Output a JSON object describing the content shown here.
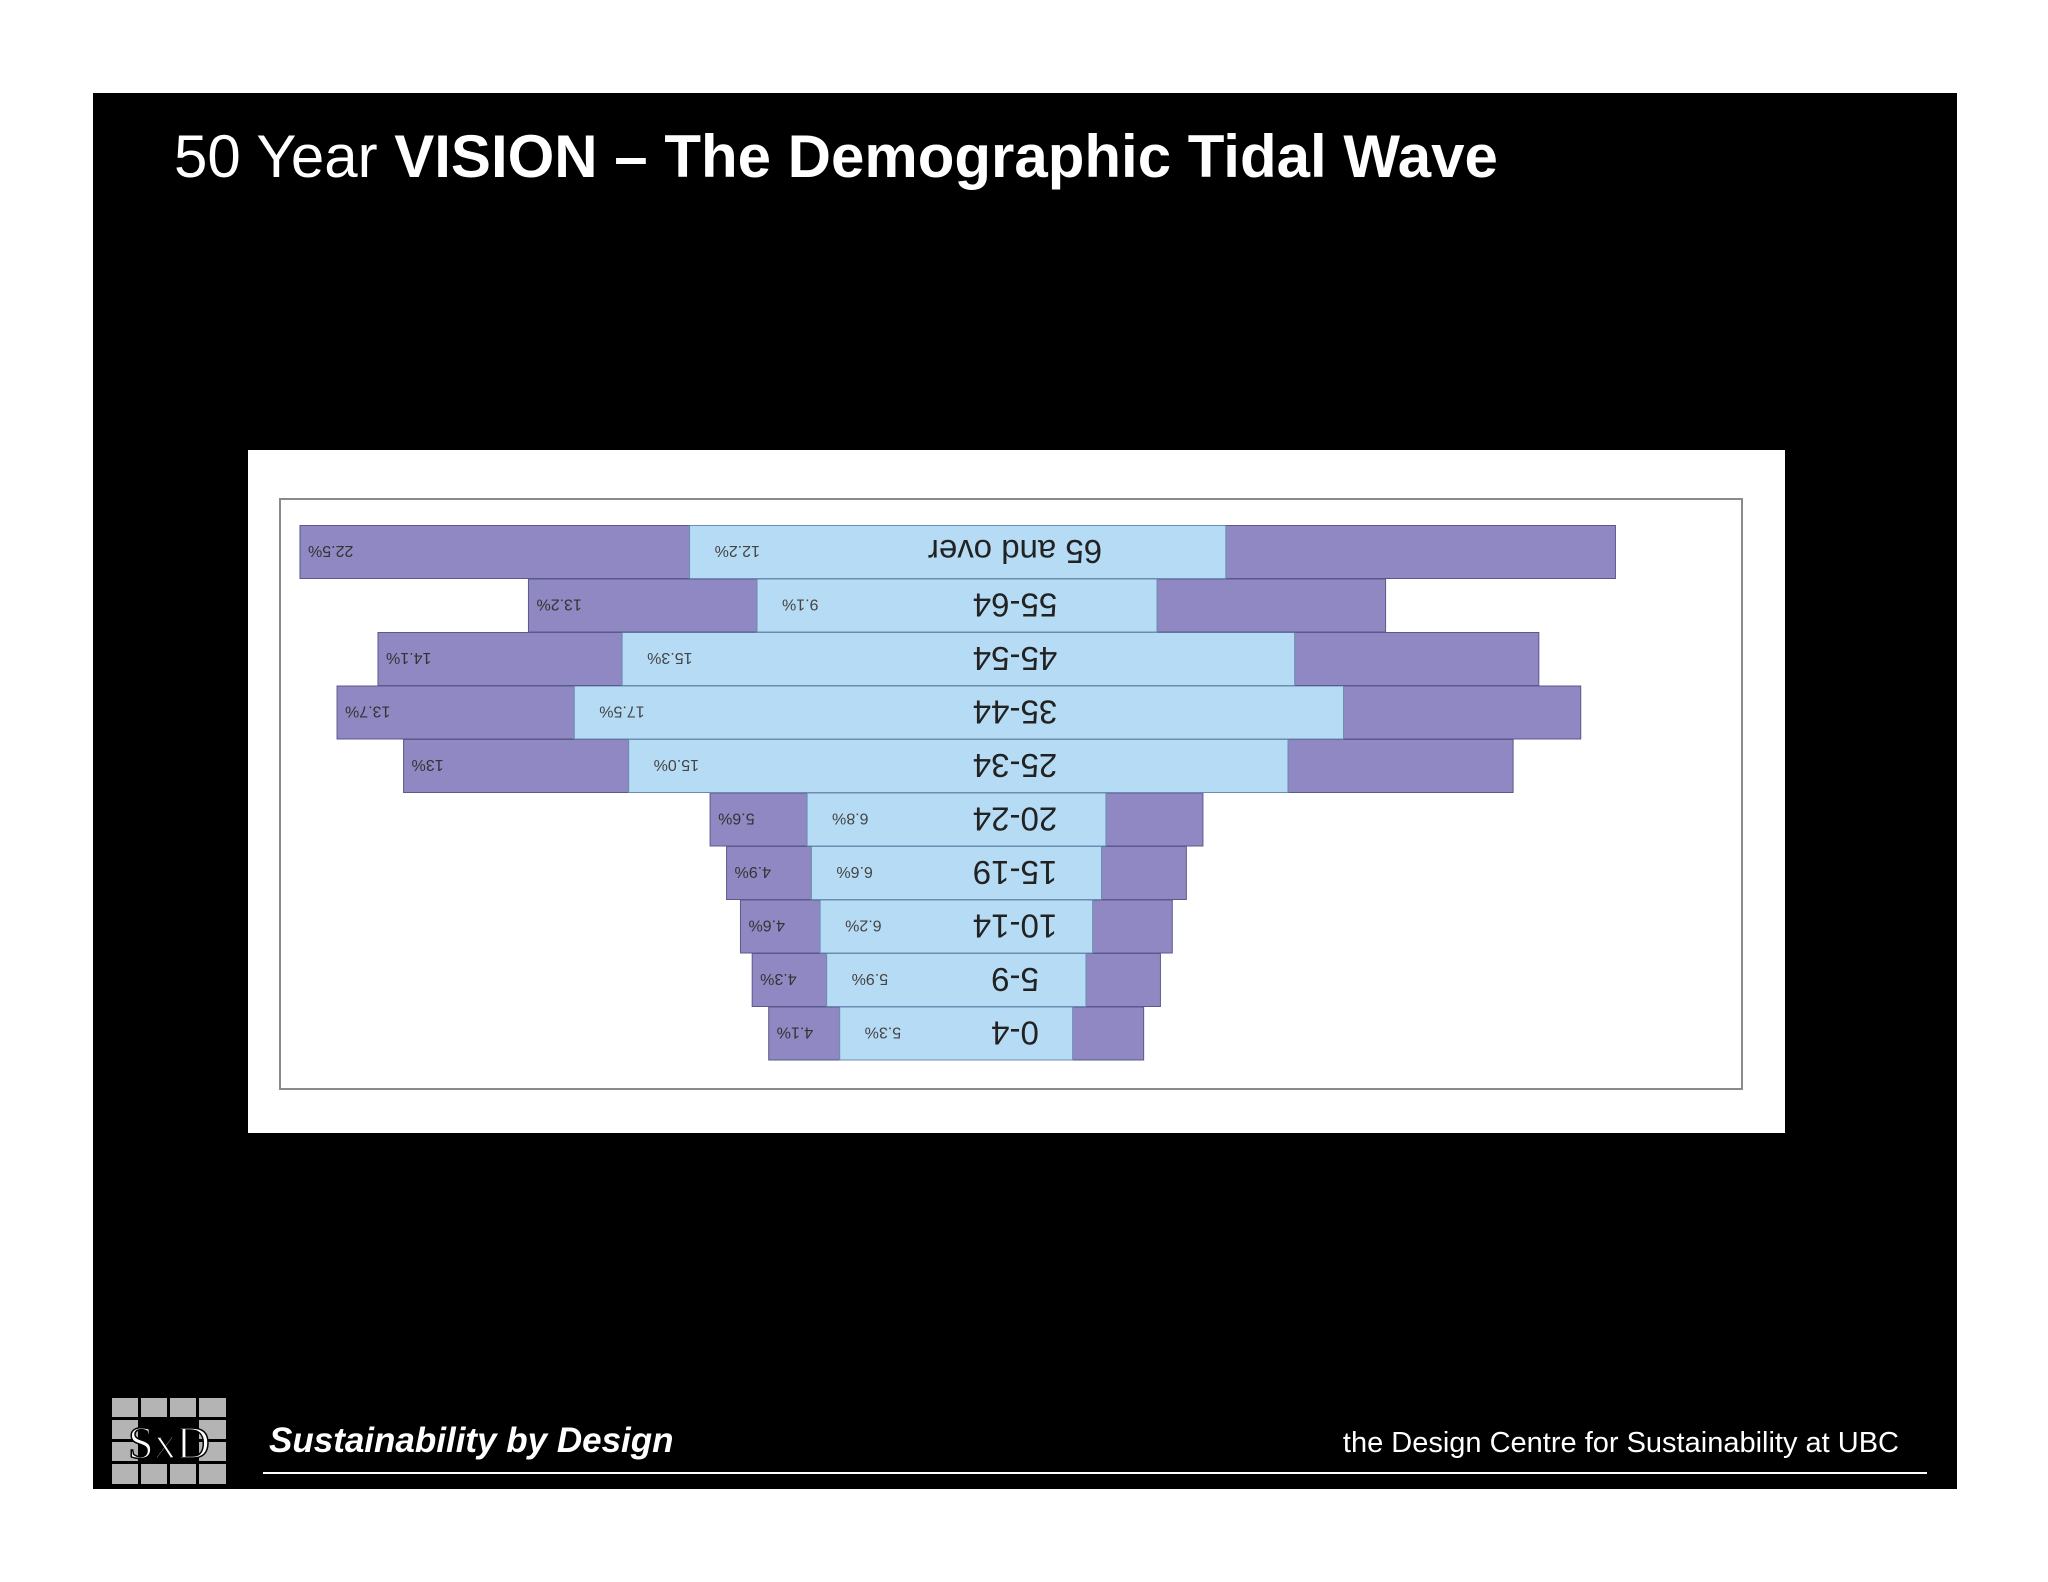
{
  "slide": {
    "title_light": "50 Year ",
    "title_bold": "VISION – The Demographic Tidal Wave",
    "background_color": "#000000"
  },
  "footer": {
    "left_text": "Sustainability by Design",
    "right_text": "the Design Centre for Sustainability at UBC",
    "logo_text": "SxD"
  },
  "chart_data": {
    "type": "bar",
    "orientation": "population-pyramid, image shown rotated 180°",
    "title": "",
    "categories": [
      "0-4",
      "5-9",
      "10-14",
      "15-19",
      "20-24",
      "25-34",
      "35-44",
      "45-54",
      "55-64",
      "65 and over"
    ],
    "series": [
      {
        "values": [
          5.3,
          5.9,
          6.2,
          6.6,
          6.8,
          15.0,
          17.5,
          15.3,
          9.1,
          12.2
        ],
        "labels": [
          "5.3%",
          "5.9%",
          "6.2%",
          "6.6%",
          "6.8%",
          "15.0%",
          "17.5%",
          "15.3%",
          "9.1%",
          "12.2%"
        ],
        "color": "#b6dcf5"
      },
      {
        "values": [
          4.1,
          4.3,
          4.6,
          4.9,
          5.6,
          13,
          13.7,
          14.1,
          13.2,
          22.5
        ],
        "labels": [
          "4.1%",
          "4.3%",
          "4.6%",
          "4.9%",
          "5.6%",
          "13%",
          "13.7%",
          "14.1%",
          "13.2%",
          "22.5%"
        ],
        "color": "#8f88c2"
      }
    ],
    "legend": "none",
    "grid": false
  }
}
